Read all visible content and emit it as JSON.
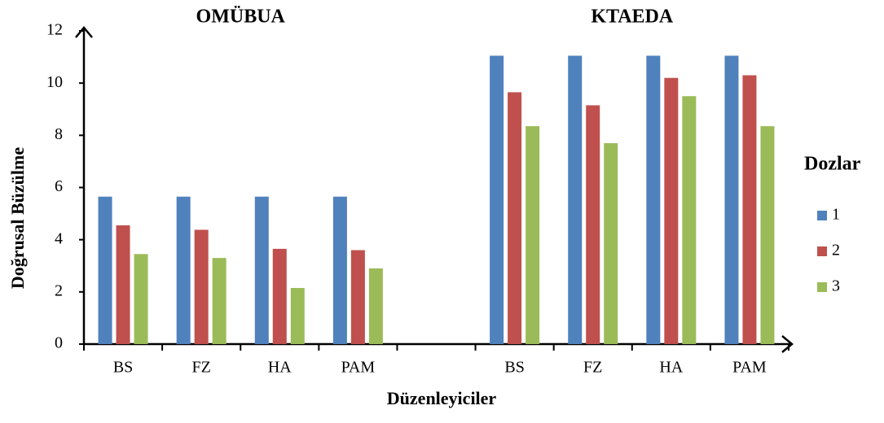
{
  "chart_data": {
    "type": "bar",
    "annotations": [
      "OMÜBUA",
      "KTAEDA"
    ],
    "x_label": "Düzenleyiciler",
    "y_label": "Doğrusal Büzülme",
    "legend_title": "Dozlar",
    "legend_position": "right",
    "categories": [
      "BS",
      "FZ",
      "HA",
      "PAM",
      null,
      "BS",
      "FZ",
      "HA",
      "PAM"
    ],
    "series": [
      {
        "name": "1",
        "color": "#4f81bd",
        "values": [
          5.65,
          5.65,
          5.65,
          5.65,
          null,
          11.05,
          11.05,
          11.05,
          11.05
        ]
      },
      {
        "name": "2",
        "color": "#c0504d",
        "values": [
          4.55,
          4.38,
          3.65,
          3.6,
          null,
          9.65,
          9.15,
          10.2,
          10.3
        ]
      },
      {
        "name": "3",
        "color": "#9bbb59",
        "values": [
          3.45,
          3.3,
          2.15,
          2.9,
          null,
          8.35,
          7.7,
          9.5,
          8.35
        ]
      }
    ],
    "ylim": [
      0,
      12
    ],
    "yticks": [
      0,
      2,
      4,
      6,
      8,
      10,
      12
    ],
    "grid": false
  }
}
